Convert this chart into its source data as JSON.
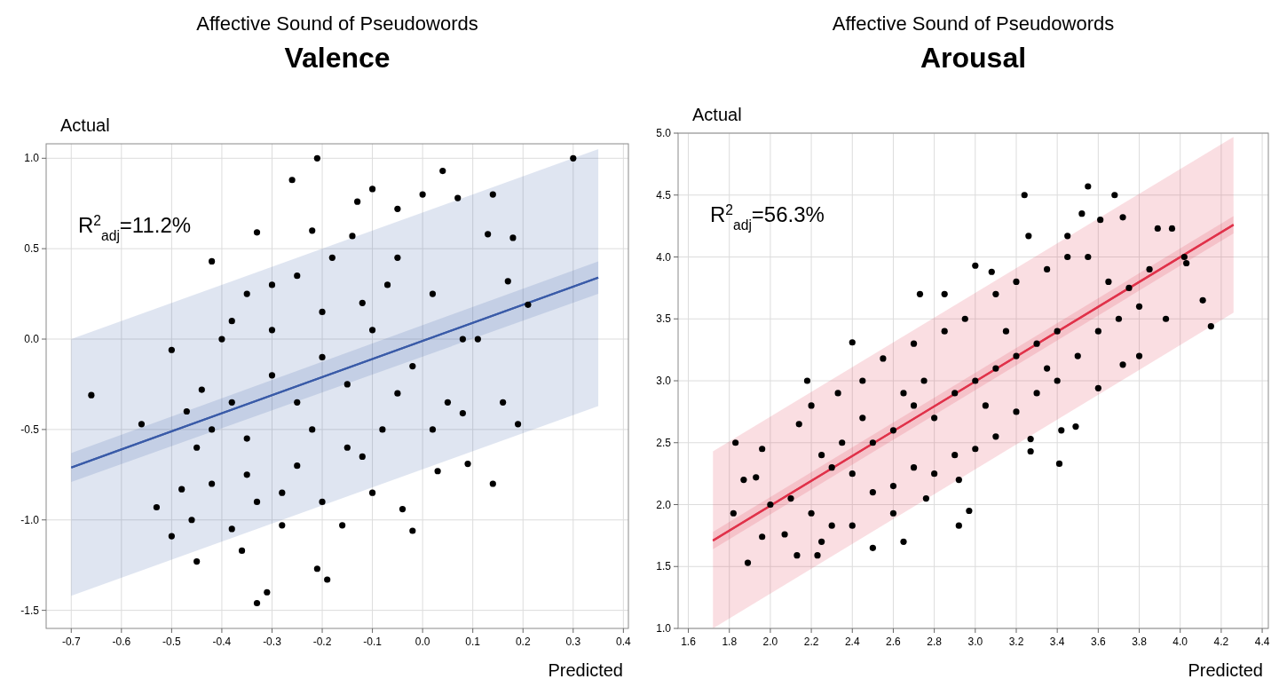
{
  "chart_data": [
    {
      "type": "scatter",
      "title": "Affective Sound of Pseudowords",
      "subtitle": "Valence",
      "xlabel": "Predicted",
      "ylabel": "Actual",
      "annotations": [
        "R$^{2}$$_{adj}$=11.2%"
      ],
      "xlim": [
        -0.75,
        0.41
      ],
      "ylim": [
        -1.6,
        1.08
      ],
      "xticks": [
        -0.7,
        -0.6,
        -0.5,
        -0.4,
        -0.3,
        -0.2,
        -0.1,
        {
          "value": 0,
          "label": "0.0"
        },
        0.1,
        0.2,
        0.3,
        0.4
      ],
      "yticks": [
        -1.5,
        {
          "value": -1,
          "label": "-1.0"
        },
        -0.5,
        {
          "value": 0,
          "label": "0.0"
        },
        0.5,
        {
          "value": 1,
          "label": "1.0"
        }
      ],
      "grid": true,
      "series": [
        {
          "type": "scatter",
          "marker": "circle",
          "color": "#000000",
          "x": [
            -0.66,
            -0.56,
            -0.53,
            -0.5,
            -0.5,
            -0.45,
            -0.46,
            -0.42,
            -0.36,
            -0.33,
            -0.31,
            -0.33,
            -0.26,
            -0.21,
            -0.21,
            -0.19,
            -0.1,
            0.04,
            0.3,
            0.21,
            0.19,
            0.14,
            0.16,
            0.18,
            0.17,
            0.13,
            0.14,
            0.07,
            0.0,
            0.09,
            0.08,
            0.03,
            -0.04,
            -0.02,
            0.11,
            0.08,
            -0.13,
            -0.05,
            -0.42,
            -0.48,
            -0.38,
            -0.28,
            -0.16,
            -0.44,
            -0.47,
            -0.35,
            -0.4,
            -0.25,
            -0.18,
            -0.07,
            0.02,
            -0.02,
            0.05,
            -0.08,
            -0.15,
            -0.25,
            -0.35,
            -0.3,
            -0.2,
            -0.1,
            -0.3,
            -0.25,
            -0.15,
            -0.05,
            -0.38,
            -0.2,
            -0.12,
            -0.28,
            -0.2,
            -0.1,
            -0.35,
            -0.42,
            -0.3,
            -0.22,
            -0.05,
            0.02,
            -0.12,
            -0.38,
            -0.45,
            -0.33,
            -0.22,
            -0.14
          ],
          "values": [
            -0.31,
            -0.47,
            -0.93,
            -1.09,
            -0.06,
            -1.23,
            -1.0,
            0.43,
            -1.17,
            -1.46,
            -1.4,
            0.59,
            0.88,
            1.0,
            -1.27,
            -1.33,
            0.83,
            0.93,
            1.0,
            0.19,
            -0.47,
            -0.8,
            -0.35,
            0.56,
            0.32,
            0.58,
            0.8,
            0.78,
            0.8,
            -0.69,
            -0.41,
            -0.73,
            -0.94,
            -1.06,
            0.0,
            0.0,
            0.76,
            0.72,
            -0.8,
            -0.83,
            -1.05,
            -1.03,
            -1.03,
            -0.28,
            -0.4,
            0.25,
            0.0,
            0.35,
            0.45,
            0.3,
            0.25,
            -0.15,
            -0.35,
            -0.5,
            -0.6,
            -0.7,
            -0.55,
            -0.2,
            -0.1,
            0.05,
            0.05,
            -0.35,
            -0.25,
            -0.3,
            -0.35,
            0.15,
            0.2,
            -0.85,
            -0.9,
            -0.85,
            -0.75,
            -0.5,
            0.3,
            -0.5,
            0.45,
            -0.5,
            -0.65,
            0.1,
            -0.6,
            -0.9,
            0.6,
            0.57
          ]
        },
        {
          "type": "line",
          "color": "#3a5ba8",
          "x": [
            -0.7,
            0.35
          ],
          "values": [
            -0.71,
            0.34
          ],
          "lower": [
            -0.79,
            0.25
          ],
          "upper": [
            -0.63,
            0.43
          ]
        },
        {
          "type": "line",
          "color": "#3a5ba8",
          "x": [
            -0.7,
            0.35
          ],
          "values": [
            -0.71,
            0.34
          ],
          "lower": [
            -1.42,
            -0.37
          ],
          "upper": [
            0.0,
            1.05
          ]
        }
      ]
    },
    {
      "type": "scatter",
      "title": "Affective Sound of Pseudowords",
      "subtitle": "Arousal",
      "xlabel": "Predicted",
      "ylabel": "Actual",
      "annotations": [
        "R$^{2}$$_{adj}$=56.3%"
      ],
      "xlim": [
        1.55,
        4.43
      ],
      "ylim": [
        1.0,
        5.0
      ],
      "xticks": [
        1.6,
        1.8,
        {
          "value": 2,
          "label": "2.0"
        },
        2.2,
        2.4,
        2.6,
        2.8,
        {
          "value": 3,
          "label": "3.0"
        },
        3.2,
        3.4,
        3.6,
        3.8,
        {
          "value": 4,
          "label": "4.0"
        },
        4.2,
        4.4
      ],
      "yticks": [
        {
          "value": 1,
          "label": "1.0"
        },
        1.5,
        {
          "value": 2,
          "label": "2.0"
        },
        2.5,
        {
          "value": 3,
          "label": "3.0"
        },
        3.5,
        {
          "value": 4,
          "label": "4.0"
        },
        4.5,
        {
          "value": 5,
          "label": "5.0"
        }
      ],
      "grid": true,
      "series": [
        {
          "type": "scatter",
          "marker": "circle",
          "color": "#000000",
          "x": [
            1.83,
            1.82,
            1.89,
            1.87,
            1.93,
            1.96,
            1.96,
            2.0,
            2.07,
            2.13,
            2.18,
            2.23,
            2.25,
            2.4,
            2.5,
            2.65,
            2.73,
            2.85,
            2.92,
            2.97,
            3.0,
            3.08,
            3.24,
            3.26,
            3.41,
            3.55,
            3.68,
            3.72,
            3.89,
            3.96,
            4.02,
            4.03,
            4.11,
            4.15,
            3.93,
            3.8,
            3.72,
            3.6,
            3.49,
            3.42,
            3.27,
            3.27,
            3.52,
            3.61,
            3.45,
            2.92,
            2.76,
            2.6,
            2.4,
            2.3,
            2.2,
            2.14,
            2.2,
            2.33,
            2.45,
            2.55,
            2.7,
            2.85,
            2.95,
            3.1,
            3.2,
            3.35,
            3.45,
            3.55,
            3.65,
            3.75,
            3.85,
            3.8,
            3.7,
            3.6,
            3.5,
            3.4,
            3.3,
            3.2,
            3.1,
            3.0,
            2.9,
            2.8,
            2.7,
            2.6,
            2.5,
            2.4,
            2.3,
            2.5,
            2.6,
            2.7,
            2.8,
            2.9,
            3.0,
            3.1,
            3.2,
            3.3,
            3.4,
            2.65,
            2.75,
            3.05,
            3.15,
            3.35,
            2.45,
            2.35,
            2.25,
            2.1
          ],
          "values": [
            2.5,
            1.93,
            1.53,
            2.2,
            2.22,
            2.45,
            1.74,
            2.0,
            1.76,
            1.59,
            3.0,
            1.59,
            1.7,
            3.31,
            1.65,
            1.7,
            3.7,
            3.7,
            1.83,
            1.95,
            3.93,
            3.88,
            4.5,
            4.17,
            2.33,
            4.57,
            4.5,
            4.32,
            4.23,
            4.23,
            4.0,
            3.95,
            3.65,
            3.44,
            3.5,
            3.2,
            3.13,
            2.94,
            2.63,
            2.6,
            2.43,
            2.53,
            4.35,
            4.3,
            4.17,
            2.2,
            2.05,
            1.93,
            1.83,
            1.83,
            1.93,
            2.65,
            2.8,
            2.9,
            3.0,
            3.18,
            3.3,
            3.4,
            3.5,
            3.7,
            3.8,
            3.9,
            4.0,
            4.0,
            3.8,
            3.75,
            3.9,
            3.6,
            3.5,
            3.4,
            3.2,
            3.0,
            2.9,
            2.75,
            2.55,
            2.45,
            2.4,
            2.25,
            2.3,
            2.15,
            2.1,
            2.25,
            2.3,
            2.5,
            2.6,
            2.8,
            2.7,
            2.9,
            3.0,
            3.1,
            3.2,
            3.3,
            3.4,
            2.9,
            3.0,
            2.8,
            3.4,
            3.1,
            2.7,
            2.5,
            2.4,
            2.05
          ]
        },
        {
          "type": "line",
          "color": "#e0324a",
          "x": [
            1.72,
            4.26
          ],
          "values": [
            1.71,
            4.26
          ],
          "lower": [
            1.64,
            4.19
          ],
          "upper": [
            1.78,
            4.33
          ]
        },
        {
          "type": "line",
          "color": "#e0324a",
          "x": [
            1.72,
            4.26
          ],
          "values": [
            1.71,
            4.26
          ],
          "lower": [
            1.0,
            3.55
          ],
          "upper": [
            2.43,
            4.97
          ]
        }
      ]
    }
  ]
}
